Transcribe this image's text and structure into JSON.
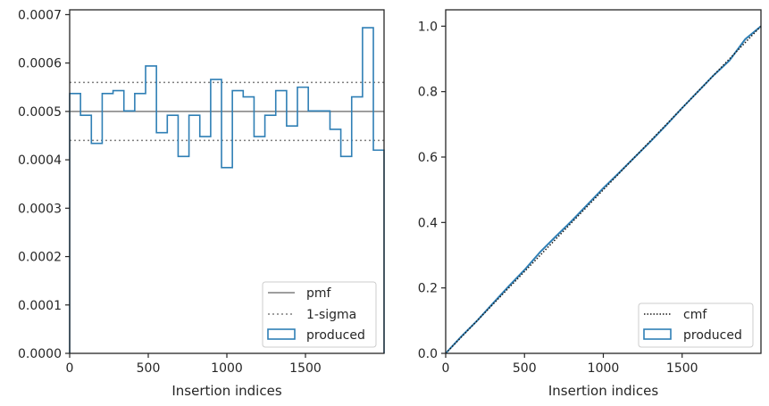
{
  "chart_data": [
    {
      "type": "histogram",
      "xlabel": "Insertion indices",
      "ylabel": "",
      "xlim": [
        0,
        2000
      ],
      "ylim": [
        0,
        0.00071
      ],
      "x_ticks": [
        "0",
        "500",
        "1000",
        "1500"
      ],
      "y_ticks": [
        "0.0000",
        "0.0001",
        "0.0002",
        "0.0003",
        "0.0004",
        "0.0005",
        "0.0006",
        "0.0007"
      ],
      "pmf": 0.0005,
      "sigma_lower": 0.00044,
      "sigma_upper": 0.00056,
      "bin_edges": [
        0,
        69,
        138,
        207,
        276,
        345,
        414,
        483,
        552,
        621,
        690,
        759,
        828,
        897,
        966,
        1035,
        1104,
        1173,
        1242,
        1311,
        1380,
        1449,
        1518,
        1587,
        1656,
        1725,
        1794,
        1863,
        1932,
        2000
      ],
      "produced": [
        0.000537,
        0.000492,
        0.000434,
        0.000537,
        0.000543,
        0.000501,
        0.000537,
        0.000594,
        0.000456,
        0.000492,
        0.000407,
        0.000492,
        0.000448,
        0.000566,
        0.000384,
        0.000543,
        0.00053,
        0.000448,
        0.000492,
        0.000543,
        0.00047,
        0.00055,
        0.000501,
        0.000501,
        0.000463,
        0.000407,
        0.00053,
        0.000673,
        0.00042
      ],
      "legend": [
        "pmf",
        "1-sigma",
        "produced"
      ],
      "legend_position": "lower right",
      "colors": {
        "produced": "#2f7fb5",
        "pmf": "#7f7f7f",
        "sigma": "#7f7f7f"
      }
    },
    {
      "type": "line",
      "xlabel": "Insertion indices",
      "ylabel": "",
      "xlim": [
        0,
        2000
      ],
      "ylim": [
        0,
        1.05
      ],
      "x_ticks": [
        "0",
        "500",
        "1000",
        "1500"
      ],
      "y_ticks": [
        "0.0",
        "0.2",
        "0.4",
        "0.6",
        "0.8",
        "1.0"
      ],
      "cmf_x": [
        0,
        2000
      ],
      "cmf_y": [
        0,
        1
      ],
      "produced_x": [
        0,
        100,
        200,
        300,
        400,
        500,
        600,
        700,
        800,
        900,
        1000,
        1100,
        1200,
        1300,
        1400,
        1500,
        1600,
        1700,
        1800,
        1900,
        2000
      ],
      "produced_y": [
        0,
        0.052,
        0.1,
        0.153,
        0.205,
        0.255,
        0.31,
        0.358,
        0.405,
        0.455,
        0.505,
        0.552,
        0.6,
        0.648,
        0.698,
        0.75,
        0.8,
        0.85,
        0.895,
        0.96,
        1.0
      ],
      "legend": [
        "cmf",
        "produced"
      ],
      "legend_position": "lower right",
      "colors": {
        "produced": "#2f7fb5",
        "cmf": "#1a1a1a"
      }
    }
  ]
}
